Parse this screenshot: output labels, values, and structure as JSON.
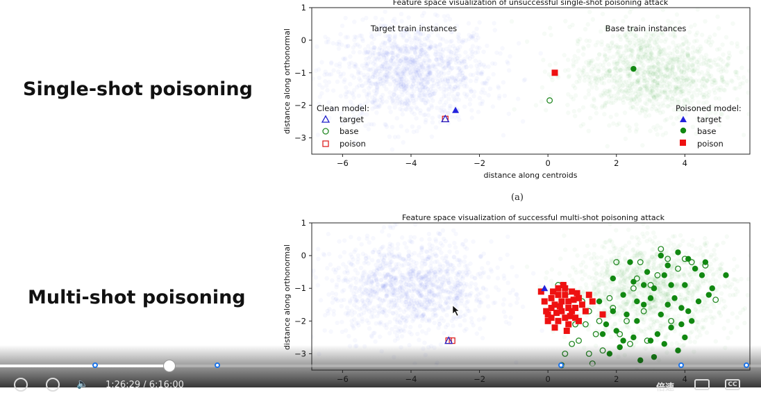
{
  "slide": {
    "label_single": "Single-shot poisoning",
    "label_multi": "Multi-shot poisoning",
    "caption_a": "(a)"
  },
  "chart_data": [
    {
      "type": "scatter",
      "title": "Feature space visualization of unsuccessful single-shot poisoning attack",
      "xlabel": "distance along centroids",
      "ylabel": "distance along orthonormal",
      "xlim": [
        -6.9,
        5.9
      ],
      "ylim": [
        -3.5,
        1
      ],
      "xticks": [
        -6,
        -4,
        -2,
        0,
        2,
        4
      ],
      "yticks": [
        1,
        0,
        -1,
        -2,
        -3
      ],
      "annotations": [
        {
          "text": "Target train instances",
          "x": -3.9,
          "y": 0.3
        },
        {
          "text": "Base train instances",
          "x": 2.9,
          "y": 0.3
        }
      ],
      "clouds": [
        {
          "name": "target-train",
          "cx": -4.0,
          "cy": -1.0,
          "sx": 1.2,
          "sy": 0.75,
          "n": 1200,
          "color": "#4455dd"
        },
        {
          "name": "base-train",
          "cx": 3.0,
          "cy": -1.0,
          "sx": 1.2,
          "sy": 0.75,
          "n": 1200,
          "color": "#339933"
        }
      ],
      "legend_clean": {
        "title": "Clean model:",
        "items": [
          "target",
          "base",
          "poison"
        ],
        "placement": "lower-left"
      },
      "legend_poisoned": {
        "title": "Poisoned model:",
        "items": [
          "target",
          "base",
          "poison"
        ],
        "placement": "lower-right"
      },
      "points": {
        "clean_target": [
          [
            -3.0,
            -2.42
          ]
        ],
        "clean_base": [
          [
            0.05,
            -1.85
          ]
        ],
        "clean_poison": [
          [
            -3.0,
            -2.42
          ]
        ],
        "poisoned_target": [
          [
            -2.7,
            -2.15
          ]
        ],
        "poisoned_base": [
          [
            2.5,
            -0.88
          ]
        ],
        "poisoned_poison": [
          [
            0.2,
            -1.0
          ]
        ]
      }
    },
    {
      "type": "scatter",
      "title": "Feature space visualization of successful multi-shot poisoning attack",
      "ylabel": "distance along orthonormal",
      "xlim": [
        -6.9,
        5.9
      ],
      "ylim": [
        -3.5,
        1
      ],
      "xticks": [
        -6,
        -4,
        -2,
        0,
        2,
        4
      ],
      "yticks": [
        1,
        0,
        -1,
        -2,
        -3
      ],
      "clouds": [
        {
          "name": "target-train",
          "cx": -4.0,
          "cy": -1.0,
          "sx": 1.2,
          "sy": 0.75,
          "n": 1200,
          "color": "#4455dd"
        },
        {
          "name": "base-train",
          "cx": 3.0,
          "cy": -1.0,
          "sx": 1.2,
          "sy": 0.75,
          "n": 1200,
          "color": "#339933"
        }
      ],
      "points": {
        "clean_target": [
          [
            -2.9,
            -2.6
          ]
        ],
        "clean_poison": [
          [
            -2.8,
            -2.6
          ],
          [
            -2.9,
            -2.6
          ]
        ],
        "poisoned_target": [
          [
            -0.1,
            -1.0
          ]
        ],
        "poisoned_poison": [
          [
            -0.2,
            -1.1
          ],
          [
            0.1,
            -1.3
          ],
          [
            0.3,
            -1.0
          ],
          [
            0.5,
            -1.2
          ],
          [
            0.2,
            -1.5
          ],
          [
            0.4,
            -1.7
          ],
          [
            0.0,
            -1.8
          ],
          [
            0.6,
            -1.4
          ],
          [
            0.8,
            -1.6
          ],
          [
            0.3,
            -2.0
          ],
          [
            0.1,
            -1.6
          ],
          [
            -0.1,
            -1.4
          ],
          [
            0.7,
            -1.1
          ],
          [
            0.9,
            -1.3
          ],
          [
            0.5,
            -1.9
          ],
          [
            0.2,
            -2.2
          ],
          [
            0.6,
            -2.1
          ],
          [
            1.0,
            -1.5
          ],
          [
            0.4,
            -1.4
          ],
          [
            0.8,
            -1.9
          ],
          [
            0.0,
            -2.0
          ],
          [
            0.3,
            -1.2
          ],
          [
            0.7,
            -1.7
          ],
          [
            0.5,
            -1.0
          ],
          [
            1.2,
            -1.2
          ],
          [
            0.9,
            -2.0
          ],
          [
            0.1,
            -1.9
          ],
          [
            0.6,
            -1.6
          ],
          [
            0.35,
            -1.55
          ],
          [
            1.3,
            -1.4
          ],
          [
            0.45,
            -0.9
          ],
          [
            -0.05,
            -1.7
          ],
          [
            0.75,
            -1.35
          ],
          [
            0.25,
            -1.75
          ],
          [
            1.6,
            -1.8
          ],
          [
            0.15,
            -1.1
          ],
          [
            0.55,
            -2.3
          ],
          [
            0.85,
            -1.15
          ],
          [
            1.1,
            -1.7
          ],
          [
            0.65,
            -1.85
          ]
        ],
        "poisoned_base": [
          [
            1.9,
            -1.7
          ],
          [
            2.2,
            -1.2
          ],
          [
            2.5,
            -0.8
          ],
          [
            2.8,
            -1.5
          ],
          [
            3.1,
            -1.0
          ],
          [
            3.4,
            -0.6
          ],
          [
            3.7,
            -1.3
          ],
          [
            4.0,
            -0.9
          ],
          [
            4.3,
            -0.4
          ],
          [
            2.0,
            -2.3
          ],
          [
            2.6,
            -2.0
          ],
          [
            3.0,
            -2.6
          ],
          [
            3.3,
            -1.8
          ],
          [
            3.6,
            -2.2
          ],
          [
            3.9,
            -1.6
          ],
          [
            4.2,
            -2.0
          ],
          [
            2.4,
            -0.2
          ],
          [
            2.9,
            -0.5
          ],
          [
            3.5,
            -0.3
          ],
          [
            4.1,
            -0.1
          ],
          [
            4.5,
            -0.6
          ],
          [
            4.8,
            -1.0
          ],
          [
            5.2,
            -0.6
          ],
          [
            3.8,
            -2.9
          ],
          [
            2.7,
            -3.2
          ],
          [
            3.2,
            -2.4
          ],
          [
            4.0,
            -2.5
          ],
          [
            1.5,
            -1.4
          ],
          [
            1.7,
            -2.1
          ],
          [
            3.0,
            -1.3
          ],
          [
            2.3,
            -1.8
          ],
          [
            3.6,
            -0.9
          ],
          [
            4.4,
            -1.4
          ],
          [
            2.1,
            -2.8
          ],
          [
            3.4,
            -2.7
          ],
          [
            1.9,
            -0.7
          ],
          [
            4.6,
            -0.2
          ],
          [
            3.8,
            0.1
          ],
          [
            2.5,
            -2.5
          ],
          [
            3.1,
            -3.1
          ],
          [
            4.1,
            -1.7
          ],
          [
            2.8,
            -0.9
          ],
          [
            3.3,
            0.0
          ],
          [
            1.6,
            -2.4
          ],
          [
            4.7,
            -1.2
          ],
          [
            2.2,
            -2.6
          ],
          [
            3.5,
            -1.5
          ],
          [
            2.6,
            -1.4
          ],
          [
            3.9,
            -2.1
          ],
          [
            1.8,
            -3.0
          ]
        ],
        "clean_base": [
          [
            0.3,
            -0.9
          ],
          [
            0.6,
            -1.1
          ],
          [
            1.0,
            -1.4
          ],
          [
            0.8,
            -2.1
          ],
          [
            1.2,
            -1.7
          ],
          [
            1.5,
            -2.0
          ],
          [
            0.9,
            -2.6
          ],
          [
            1.4,
            -2.4
          ],
          [
            1.6,
            -2.9
          ],
          [
            0.4,
            -3.35
          ],
          [
            1.2,
            -3.0
          ],
          [
            0.7,
            -2.7
          ],
          [
            2.0,
            -0.2
          ],
          [
            2.6,
            -0.7
          ],
          [
            3.0,
            -0.9
          ],
          [
            2.8,
            -1.7
          ],
          [
            2.3,
            -2.0
          ],
          [
            2.1,
            -2.4
          ],
          [
            3.2,
            -0.6
          ],
          [
            3.5,
            -0.1
          ],
          [
            3.8,
            -0.4
          ],
          [
            4.2,
            -0.2
          ],
          [
            4.6,
            -0.3
          ],
          [
            4.9,
            -1.35
          ],
          [
            3.6,
            -2.0
          ],
          [
            2.9,
            -2.6
          ],
          [
            2.4,
            -2.7
          ],
          [
            1.8,
            -1.3
          ],
          [
            1.1,
            -2.1
          ],
          [
            0.5,
            -3.0
          ],
          [
            1.3,
            -3.3
          ],
          [
            2.7,
            -0.2
          ],
          [
            3.3,
            0.2
          ],
          [
            4.0,
            -0.1
          ],
          [
            2.5,
            -1.0
          ],
          [
            1.9,
            -1.6
          ]
        ]
      }
    }
  ],
  "player": {
    "time": "1:26:29 / 6:16:00",
    "speed_label": "倍速",
    "cc_label": "CC",
    "played_fraction": 0.223
  }
}
